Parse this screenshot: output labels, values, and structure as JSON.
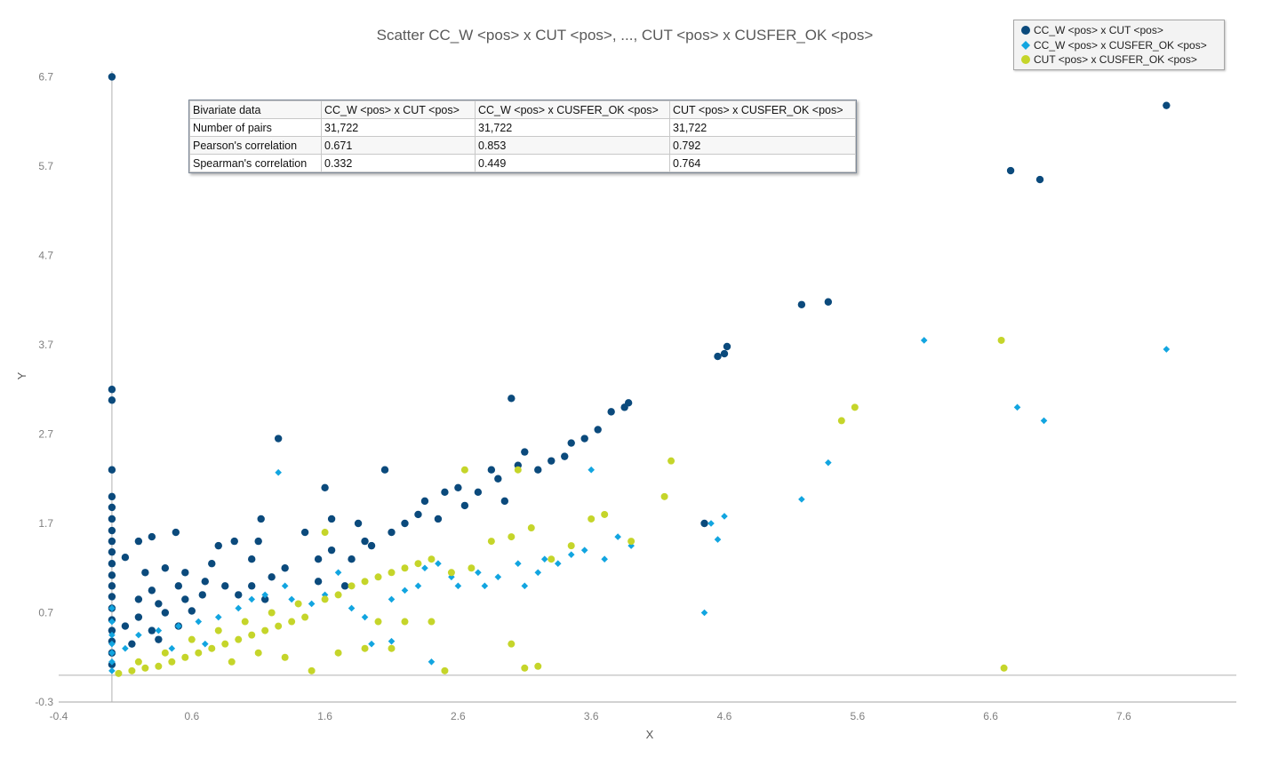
{
  "chart_data": {
    "type": "scatter",
    "title": "Scatter CC_W <pos> x CUT <pos>, ..., CUT <pos> x CUSFER_OK <pos>",
    "xlabel": "X",
    "ylabel": "Y",
    "xlim": [
      -0.4,
      8.4
    ],
    "ylim": [
      -0.3,
      7.0
    ],
    "x_ticks": [
      "-0.4",
      "0.6",
      "1.6",
      "2.6",
      "3.6",
      "4.6",
      "5.6",
      "6.6",
      "7.6"
    ],
    "y_ticks": [
      "-0.3",
      "0.7",
      "1.7",
      "2.7",
      "3.7",
      "4.7",
      "5.7",
      "6.7"
    ],
    "grid": false,
    "legend_position": "top-right",
    "series": [
      {
        "name": "CC_W <pos> x CUT <pos>",
        "marker": "circle",
        "color": "#0b4a7c",
        "points": [
          [
            0,
            6.7
          ],
          [
            0,
            3.2
          ],
          [
            0,
            3.08
          ],
          [
            0,
            2.3
          ],
          [
            0,
            2.0
          ],
          [
            0,
            1.88
          ],
          [
            0,
            1.75
          ],
          [
            0,
            1.62
          ],
          [
            0,
            1.5
          ],
          [
            0,
            1.38
          ],
          [
            0,
            1.25
          ],
          [
            0,
            1.12
          ],
          [
            0,
            1.0
          ],
          [
            0,
            0.88
          ],
          [
            0,
            0.75
          ],
          [
            0,
            0.62
          ],
          [
            0,
            0.5
          ],
          [
            0,
            0.38
          ],
          [
            0,
            0.25
          ],
          [
            0,
            0.12
          ],
          [
            0.1,
            1.32
          ],
          [
            0.2,
            1.5
          ],
          [
            0.3,
            1.55
          ],
          [
            0.48,
            1.6
          ],
          [
            0.25,
            1.15
          ],
          [
            0.4,
            1.2
          ],
          [
            0.55,
            1.15
          ],
          [
            0.75,
            1.25
          ],
          [
            0.3,
            0.95
          ],
          [
            0.5,
            1.0
          ],
          [
            0.7,
            1.05
          ],
          [
            0.85,
            1.0
          ],
          [
            0.2,
            0.85
          ],
          [
            0.35,
            0.8
          ],
          [
            0.55,
            0.85
          ],
          [
            0.68,
            0.9
          ],
          [
            0.2,
            0.65
          ],
          [
            0.4,
            0.7
          ],
          [
            0.6,
            0.72
          ],
          [
            0.1,
            0.55
          ],
          [
            0.3,
            0.5
          ],
          [
            0.5,
            0.55
          ],
          [
            0.15,
            0.35
          ],
          [
            0.35,
            0.4
          ],
          [
            0.8,
            1.45
          ],
          [
            0.92,
            1.5
          ],
          [
            1.05,
            1.3
          ],
          [
            1.1,
            1.5
          ],
          [
            1.12,
            1.75
          ],
          [
            1.05,
            1.0
          ],
          [
            1.2,
            1.1
          ],
          [
            1.3,
            1.2
          ],
          [
            0.95,
            0.9
          ],
          [
            1.15,
            0.85
          ],
          [
            1.25,
            2.65
          ],
          [
            1.45,
            1.6
          ],
          [
            1.55,
            1.3
          ],
          [
            1.55,
            1.05
          ],
          [
            1.65,
            1.4
          ],
          [
            1.6,
            2.1
          ],
          [
            1.65,
            1.75
          ],
          [
            1.75,
            1.0
          ],
          [
            1.8,
            1.3
          ],
          [
            1.85,
            1.7
          ],
          [
            1.9,
            1.5
          ],
          [
            1.95,
            1.45
          ],
          [
            2.05,
            2.3
          ],
          [
            2.1,
            1.6
          ],
          [
            2.2,
            1.7
          ],
          [
            2.3,
            1.8
          ],
          [
            2.35,
            1.95
          ],
          [
            2.45,
            1.75
          ],
          [
            2.5,
            2.05
          ],
          [
            2.6,
            2.1
          ],
          [
            2.65,
            1.9
          ],
          [
            2.75,
            2.05
          ],
          [
            2.85,
            2.3
          ],
          [
            2.9,
            2.2
          ],
          [
            2.95,
            1.95
          ],
          [
            3.0,
            3.1
          ],
          [
            3.05,
            2.35
          ],
          [
            3.1,
            2.5
          ],
          [
            3.2,
            2.3
          ],
          [
            3.3,
            2.4
          ],
          [
            3.4,
            2.45
          ],
          [
            3.45,
            2.6
          ],
          [
            3.55,
            2.65
          ],
          [
            3.65,
            2.75
          ],
          [
            3.75,
            2.95
          ],
          [
            3.85,
            3.0
          ],
          [
            3.88,
            3.05
          ],
          [
            4.45,
            1.7
          ],
          [
            4.55,
            3.57
          ],
          [
            4.6,
            3.6
          ],
          [
            4.62,
            3.68
          ],
          [
            5.18,
            4.15
          ],
          [
            5.38,
            4.18
          ],
          [
            6.75,
            5.65
          ],
          [
            6.97,
            5.55
          ],
          [
            7.92,
            6.38
          ]
        ]
      },
      {
        "name": "CC_W <pos> x CUSFER_OK <pos>",
        "marker": "diamond",
        "color": "#12a5e0",
        "points": [
          [
            0,
            0.75
          ],
          [
            0,
            0.6
          ],
          [
            0,
            0.45
          ],
          [
            0,
            0.35
          ],
          [
            0,
            0.25
          ],
          [
            0,
            0.15
          ],
          [
            0,
            0.05
          ],
          [
            0.1,
            0.3
          ],
          [
            0.2,
            0.45
          ],
          [
            0.35,
            0.5
          ],
          [
            0.5,
            0.55
          ],
          [
            0.65,
            0.6
          ],
          [
            0.8,
            0.65
          ],
          [
            0.45,
            0.3
          ],
          [
            0.7,
            0.35
          ],
          [
            0.95,
            0.75
          ],
          [
            1.05,
            0.85
          ],
          [
            1.15,
            0.9
          ],
          [
            1.25,
            2.27
          ],
          [
            1.3,
            1.0
          ],
          [
            1.35,
            0.85
          ],
          [
            1.5,
            0.8
          ],
          [
            1.6,
            0.9
          ],
          [
            1.7,
            1.15
          ],
          [
            1.8,
            0.75
          ],
          [
            1.9,
            0.65
          ],
          [
            2.0,
            1.1
          ],
          [
            2.1,
            0.85
          ],
          [
            2.2,
            0.95
          ],
          [
            2.3,
            1.0
          ],
          [
            2.35,
            1.2
          ],
          [
            2.45,
            1.25
          ],
          [
            2.55,
            1.1
          ],
          [
            2.6,
            1.0
          ],
          [
            2.75,
            1.15
          ],
          [
            2.8,
            1.0
          ],
          [
            2.9,
            1.1
          ],
          [
            3.05,
            1.25
          ],
          [
            3.1,
            1.0
          ],
          [
            3.2,
            1.15
          ],
          [
            3.25,
            1.3
          ],
          [
            3.35,
            1.25
          ],
          [
            3.45,
            1.35
          ],
          [
            3.55,
            1.4
          ],
          [
            3.7,
            1.3
          ],
          [
            3.8,
            1.55
          ],
          [
            3.9,
            1.45
          ],
          [
            3.6,
            2.3
          ],
          [
            4.45,
            0.7
          ],
          [
            4.5,
            1.7
          ],
          [
            4.55,
            1.52
          ],
          [
            4.6,
            1.78
          ],
          [
            5.18,
            1.97
          ],
          [
            5.38,
            2.38
          ],
          [
            6.1,
            3.75
          ],
          [
            6.8,
            3.0
          ],
          [
            7.0,
            2.85
          ],
          [
            7.92,
            3.65
          ],
          [
            1.95,
            0.35
          ],
          [
            2.1,
            0.38
          ],
          [
            2.4,
            0.15
          ]
        ]
      },
      {
        "name": "CUT <pos> x CUSFER_OK <pos>",
        "marker": "circle",
        "color": "#c5d52a",
        "points": [
          [
            0.05,
            0.02
          ],
          [
            0.15,
            0.05
          ],
          [
            0.25,
            0.08
          ],
          [
            0.35,
            0.1
          ],
          [
            0.45,
            0.15
          ],
          [
            0.55,
            0.2
          ],
          [
            0.65,
            0.25
          ],
          [
            0.75,
            0.3
          ],
          [
            0.85,
            0.35
          ],
          [
            0.95,
            0.4
          ],
          [
            1.05,
            0.45
          ],
          [
            1.15,
            0.5
          ],
          [
            1.25,
            0.55
          ],
          [
            1.35,
            0.6
          ],
          [
            1.45,
            0.65
          ],
          [
            0.2,
            0.15
          ],
          [
            0.4,
            0.25
          ],
          [
            0.6,
            0.4
          ],
          [
            0.8,
            0.5
          ],
          [
            1.0,
            0.6
          ],
          [
            1.2,
            0.7
          ],
          [
            1.4,
            0.8
          ],
          [
            1.6,
            0.85
          ],
          [
            1.7,
            0.9
          ],
          [
            1.8,
            1.0
          ],
          [
            1.9,
            1.05
          ],
          [
            2.0,
            1.1
          ],
          [
            2.1,
            1.15
          ],
          [
            2.2,
            1.2
          ],
          [
            2.3,
            1.25
          ],
          [
            2.4,
            1.3
          ],
          [
            2.55,
            1.15
          ],
          [
            2.7,
            1.2
          ],
          [
            2.85,
            1.5
          ],
          [
            3.0,
            1.55
          ],
          [
            3.15,
            1.65
          ],
          [
            3.3,
            1.3
          ],
          [
            3.45,
            1.45
          ],
          [
            3.6,
            1.75
          ],
          [
            3.7,
            1.8
          ],
          [
            3.9,
            1.5
          ],
          [
            4.15,
            2.0
          ],
          [
            4.2,
            2.4
          ],
          [
            1.6,
            1.6
          ],
          [
            2.0,
            0.6
          ],
          [
            2.2,
            0.6
          ],
          [
            2.4,
            0.6
          ],
          [
            2.5,
            0.05
          ],
          [
            3.2,
            0.1
          ],
          [
            3.1,
            0.08
          ],
          [
            3.0,
            0.35
          ],
          [
            2.65,
            2.3
          ],
          [
            3.05,
            2.3
          ],
          [
            5.48,
            2.85
          ],
          [
            5.58,
            3.0
          ],
          [
            6.68,
            3.75
          ],
          [
            6.7,
            0.08
          ],
          [
            1.3,
            0.2
          ],
          [
            1.5,
            0.05
          ],
          [
            1.7,
            0.25
          ],
          [
            1.9,
            0.3
          ],
          [
            2.1,
            0.3
          ],
          [
            0.9,
            0.15
          ],
          [
            1.1,
            0.25
          ]
        ]
      }
    ]
  },
  "stats_table": {
    "header": [
      "Bivariate data",
      "CC_W <pos> x CUT <pos>",
      "CC_W <pos> x CUSFER_OK <pos>",
      "CUT <pos> x CUSFER_OK <pos>"
    ],
    "rows": [
      [
        "Number of pairs",
        "31,722",
        "31,722",
        "31,722"
      ],
      [
        "Pearson's correlation",
        "0.671",
        "0.853",
        "0.792"
      ],
      [
        "Spearman's correlation",
        "0.332",
        "0.449",
        "0.764"
      ]
    ]
  },
  "legend": {
    "items": [
      {
        "label": "CC_W <pos> x CUT <pos>",
        "marker": "circle",
        "color": "#0b4a7c"
      },
      {
        "label": "CC_W <pos> x CUSFER_OK <pos>",
        "marker": "diamond",
        "color": "#12a5e0"
      },
      {
        "label": "CUT <pos> x CUSFER_OK <pos>",
        "marker": "circle",
        "color": "#c5d52a"
      }
    ]
  }
}
